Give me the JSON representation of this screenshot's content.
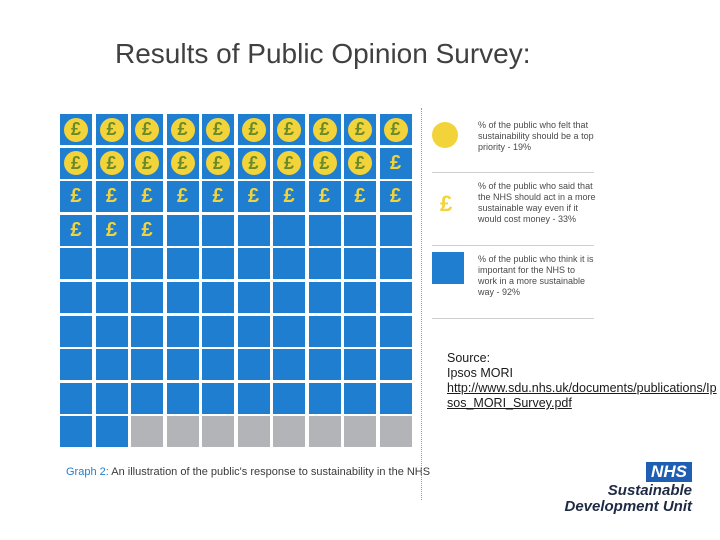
{
  "slide": {
    "title": "Results of Public Opinion Survey:"
  },
  "chart_data": {
    "type": "pictogram",
    "total_cells": 100,
    "grid_columns": 10,
    "grid_rows": 10,
    "categories": [
      "top priority (coin)",
      "NHS should act even if costs money (pound)",
      "important to work sustainably (blue)",
      "remainder (gray)"
    ],
    "values": [
      19,
      33,
      92,
      8
    ],
    "series": [
      {
        "name": "% of the public who felt that sustainability should be a top priority",
        "value": 19,
        "marker": "coin"
      },
      {
        "name": "% of the public who said that the NHS should act in a more sustainable way even if it would cost money",
        "value": 33,
        "marker": "pound"
      },
      {
        "name": "% of the public who think it is important for the NHS to work in a more sustainable way",
        "value": 92,
        "marker": "blue-square"
      }
    ],
    "caption_lead": "Graph 2:",
    "caption_rest": "An illustration of the public's response to sustainability in the NHS",
    "colors": {
      "blue": "#1f7ed0",
      "gray": "#b2b4b7",
      "gold": "#f2d43a"
    }
  },
  "legend": {
    "items": [
      {
        "icon": "coin-icon",
        "text": "% of the public who felt that sustainability should be a top priority - 19%"
      },
      {
        "icon": "pound-icon",
        "text": "% of the public who said that the NHS should act in a more sustainable way even if it would cost money - 33%"
      },
      {
        "icon": "blue-square-icon",
        "text": "% of the public who think it is important for the NHS to work in a more sustainable way - 92%"
      }
    ]
  },
  "source": {
    "label": "Source:",
    "org": "Ipsos MORI",
    "url": "http://www.sdu.nhs.uk/documents/publications/Ipsos_MORI_Survey.pdf"
  },
  "logo": {
    "badge": "NHS",
    "line1": "Sustainable",
    "line2": "Development Unit"
  },
  "glyphs": {
    "pound": "£"
  }
}
